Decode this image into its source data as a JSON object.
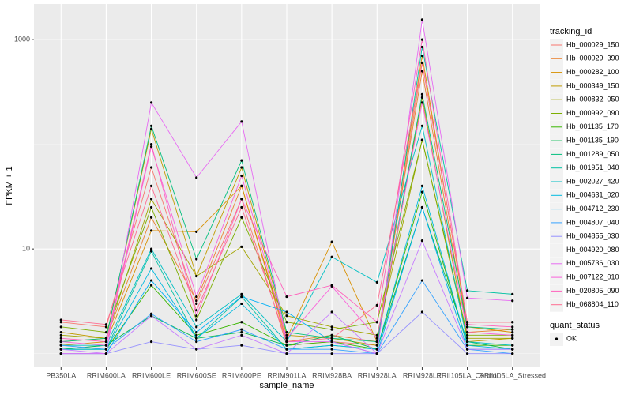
{
  "chart_data": {
    "type": "line",
    "x_label": "sample_name",
    "y_label": "FPKM + 1",
    "log_y": true,
    "grid": true,
    "ylim": [
      0.74,
      2190
    ],
    "yticks": [
      10,
      1000
    ],
    "minor_yticks": [
      1,
      100
    ],
    "legend_title": "tracking_id",
    "point_legend_title": "quant_status",
    "point_legend_labels": [
      "OK"
    ],
    "point_color": "#000000",
    "categories": [
      "PB350LA",
      "RRIM600LA",
      "RRIM600LE",
      "RRIM600SE",
      "RRIM600PE",
      "RRIM901LA",
      "RRIM928BA",
      "RRIM928LA",
      "RRIM928LE",
      "RRII105LA_Control",
      "RRII105LA_Stressed"
    ],
    "series": [
      {
        "name": "Hb_000029_150",
        "color": "#F8766D",
        "values": [
          2.0,
          1.8,
          60,
          3.0,
          30,
          1.2,
          1.3,
          1.2,
          600,
          2.0,
          2.0
        ]
      },
      {
        "name": "Hb_000029_390",
        "color": "#EA8331",
        "values": [
          1.3,
          1.4,
          20,
          3.2,
          40,
          1.3,
          1.5,
          1.3,
          500,
          1.6,
          1.7
        ]
      },
      {
        "name": "Hb_000282_100",
        "color": "#D89000",
        "values": [
          1.2,
          1.3,
          15,
          14.6,
          40,
          1.4,
          11.7,
          1.3,
          700,
          1.8,
          1.6
        ]
      },
      {
        "name": "Hb_000349_150",
        "color": "#C09B00",
        "values": [
          1.6,
          1.4,
          140,
          5.5,
          60,
          1.5,
          1.4,
          1.2,
          280,
          1.3,
          1.4
        ]
      },
      {
        "name": "Hb_000832_050",
        "color": "#A3A500",
        "values": [
          1.5,
          1.4,
          30,
          5.5,
          10.5,
          2.3,
          1.8,
          1.5,
          110,
          1.4,
          1.4
        ]
      },
      {
        "name": "Hb_000992_090",
        "color": "#7CAE00",
        "values": [
          1.8,
          1.6,
          25,
          2.1,
          20,
          2.0,
          1.7,
          2.0,
          110,
          1.5,
          1.5
        ]
      },
      {
        "name": "Hb_001135_170",
        "color": "#39B600",
        "values": [
          1.1,
          1.1,
          4.5,
          1.5,
          2.0,
          1.2,
          1.3,
          1.1,
          35,
          1.2,
          1.2
        ]
      },
      {
        "name": "Hb_001135_190",
        "color": "#00BB4E",
        "values": [
          1.1,
          1.2,
          2.3,
          1.4,
          1.6,
          1.2,
          1.5,
          1.1,
          25,
          1.3,
          1.1
        ]
      },
      {
        "name": "Hb_001289_050",
        "color": "#00BF7D",
        "values": [
          1.3,
          1.4,
          150,
          8.0,
          70,
          1.6,
          1.4,
          1.3,
          300,
          1.8,
          1.7
        ]
      },
      {
        "name": "Hb_001951_040",
        "color": "#00C1A3",
        "values": [
          1.1,
          1.1,
          9.5,
          1.4,
          3.5,
          1.1,
          1.2,
          1.1,
          850,
          4.0,
          3.7
        ]
      },
      {
        "name": "Hb_002027_420",
        "color": "#00BFC4",
        "values": [
          1.2,
          1.2,
          10,
          1.8,
          3.7,
          1.3,
          8.4,
          4.8,
          150,
          1.3,
          1.2
        ]
      },
      {
        "name": "Hb_004631_020",
        "color": "#00BAE0",
        "values": [
          1.1,
          1.1,
          6.5,
          1.4,
          3.0,
          1.1,
          1.2,
          1.1,
          40,
          1.2,
          1.1
        ]
      },
      {
        "name": "Hb_004712_230",
        "color": "#00B0F6",
        "values": [
          1.0,
          1.0,
          5.0,
          1.6,
          3.5,
          2.5,
          1.3,
          1.0,
          25,
          1.1,
          1.1
        ]
      },
      {
        "name": "Hb_004807_040",
        "color": "#35A2FF",
        "values": [
          1.2,
          1.1,
          2.4,
          1.3,
          1.7,
          1.1,
          1.1,
          1.0,
          5,
          1.1,
          1.0
        ]
      },
      {
        "name": "Hb_004855_030",
        "color": "#9590FF",
        "values": [
          1.0,
          1.0,
          1.3,
          1.1,
          1.2,
          1.0,
          1.0,
          1.0,
          2.5,
          1.0,
          1.0
        ]
      },
      {
        "name": "Hb_004920_080",
        "color": "#C77CFF",
        "values": [
          1.1,
          1.0,
          2.3,
          1.1,
          1.5,
          1.0,
          2.5,
          1.0,
          12,
          1.1,
          1.1
        ]
      },
      {
        "name": "Hb_005736_030",
        "color": "#E76BF3",
        "values": [
          1.0,
          1.0,
          250,
          48,
          165,
          1.3,
          1.3,
          1.0,
          1550,
          3.4,
          3.2
        ]
      },
      {
        "name": "Hb_007122_010",
        "color": "#FA62DB",
        "values": [
          1.3,
          1.2,
          95,
          3.5,
          50,
          1.4,
          4.4,
          1.4,
          250,
          1.6,
          1.5
        ]
      },
      {
        "name": "Hb_020805_090",
        "color": "#FF62BC",
        "values": [
          1.4,
          1.3,
          100,
          2.3,
          30,
          3.5,
          4.5,
          2.0,
          1000,
          1.9,
          1.8
        ]
      },
      {
        "name": "Hb_068804_110",
        "color": "#FF6C91",
        "values": [
          2.1,
          1.9,
          40,
          2.6,
          25,
          1.3,
          1.4,
          2.9,
          600,
          2.0,
          2.0
        ]
      }
    ]
  }
}
